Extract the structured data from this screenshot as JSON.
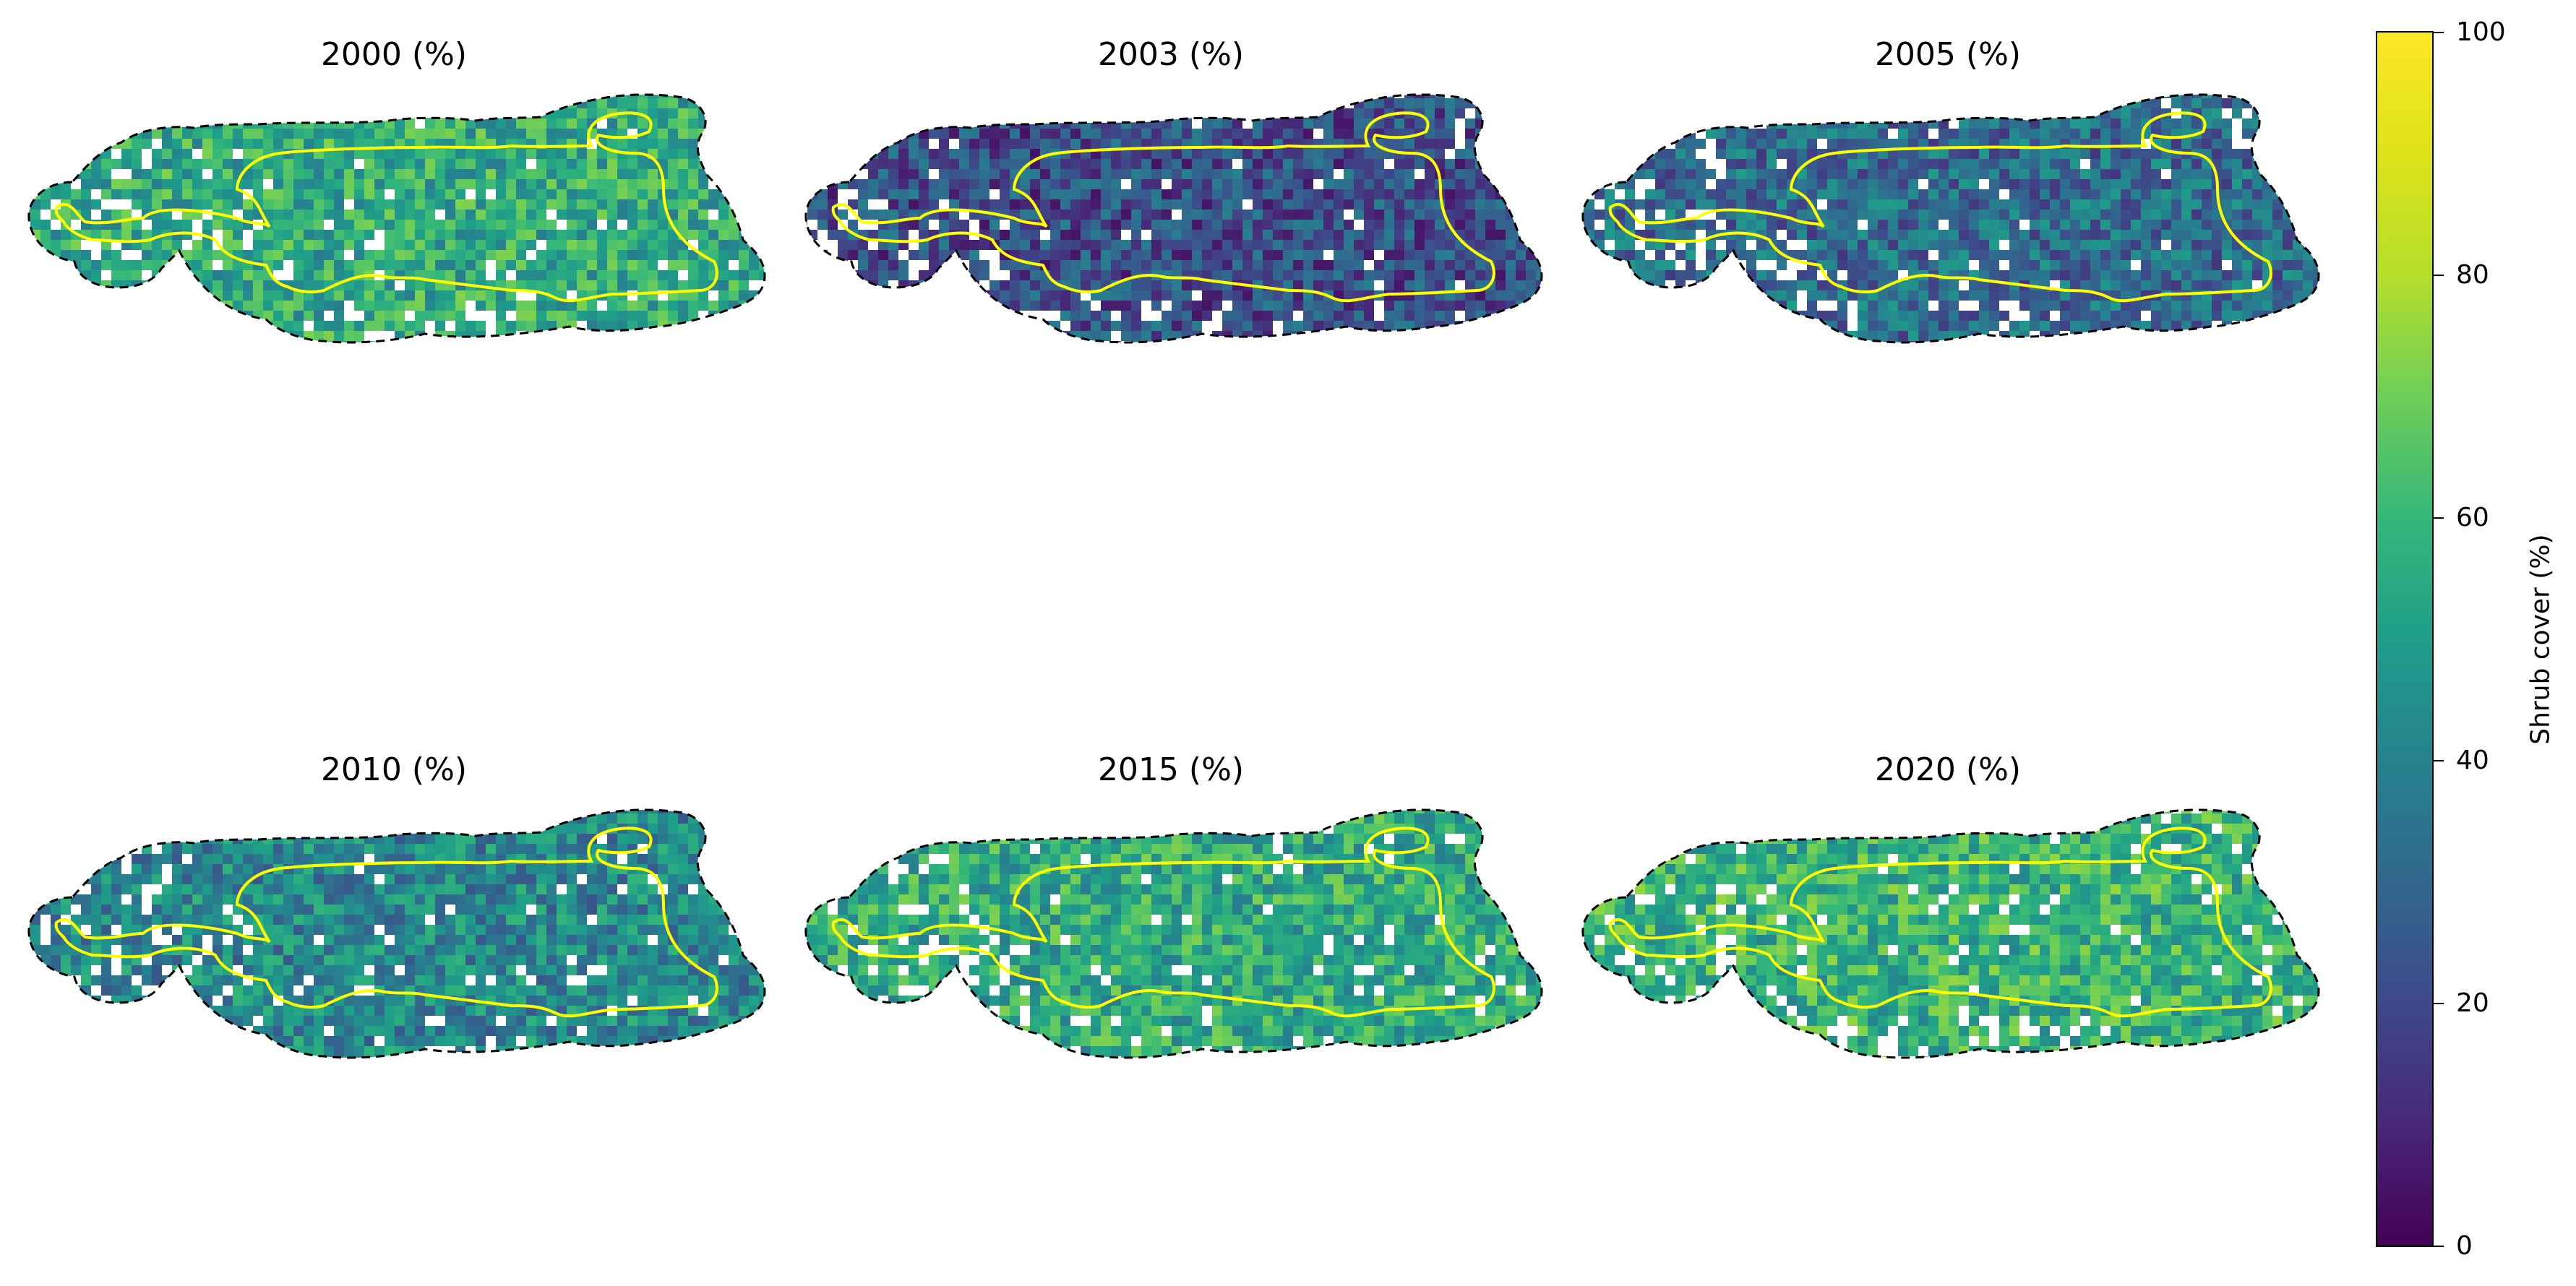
{
  "panels": [
    {
      "title": "2000 (%)",
      "cover": 0.55
    },
    {
      "title": "2003 (%)",
      "cover": 0.22
    },
    {
      "title": "2005 (%)",
      "cover": 0.32
    },
    {
      "title": "2010 (%)",
      "cover": 0.42
    },
    {
      "title": "2015 (%)",
      "cover": 0.55
    },
    {
      "title": "2020 (%)",
      "cover": 0.58
    }
  ],
  "colorbar": {
    "label": "Shrub cover (%)",
    "ticks": [
      "0",
      "20",
      "40",
      "60",
      "80",
      "100"
    ],
    "range": [
      0,
      100
    ],
    "colormap": "viridis"
  },
  "styles": {
    "study_area_boundary": "#000000",
    "inner_boundary": "#ffff00"
  }
}
